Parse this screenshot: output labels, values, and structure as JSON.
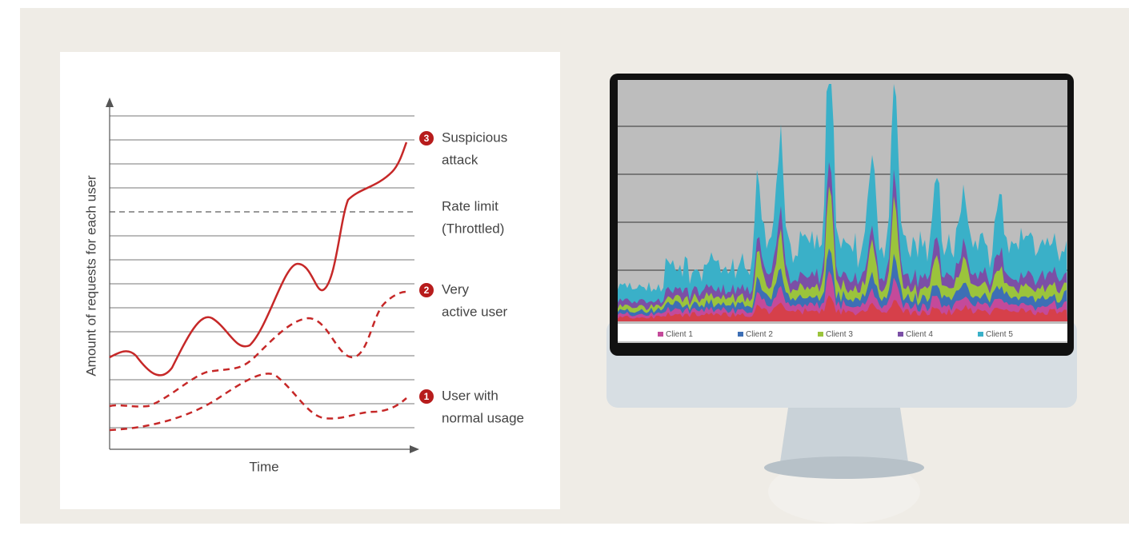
{
  "diagram": {
    "y_axis_label": "Amount of requests for each user",
    "x_axis_label": "Time",
    "annotations": [
      {
        "number": "3",
        "lines": [
          "Suspicious",
          "attack"
        ]
      },
      {
        "number": "2",
        "lines": [
          "Very",
          "active user"
        ]
      },
      {
        "number": "1",
        "lines": [
          "User with",
          "normal usage"
        ]
      }
    ],
    "rate_limit": [
      "Rate limit",
      "(Throttled)"
    ]
  },
  "monitor": {
    "legend": [
      "Client 1",
      "Client 2",
      "Client 3",
      "Client 4",
      "Client 5"
    ]
  }
}
